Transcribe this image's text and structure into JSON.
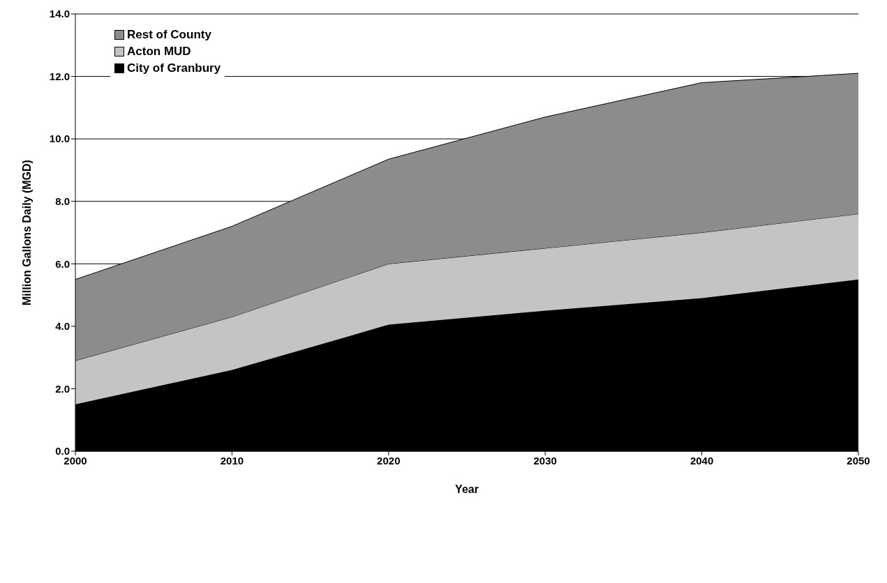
{
  "chart_data": {
    "type": "area",
    "stacked": true,
    "xlabel": "Year",
    "ylabel": "Million Gallons Daily (MGD)",
    "x": [
      2000,
      2010,
      2020,
      2030,
      2040,
      2050
    ],
    "series": [
      {
        "name": "City of Granbury",
        "color": "#000000",
        "values": [
          1.5,
          2.6,
          4.05,
          4.5,
          4.9,
          5.5
        ]
      },
      {
        "name": "Acton MUD",
        "color": "#c4c4c4",
        "values": [
          1.4,
          1.7,
          1.95,
          2.0,
          2.1,
          2.1
        ]
      },
      {
        "name": "Rest of County",
        "color": "#8c8c8c",
        "values": [
          2.6,
          2.9,
          3.35,
          4.2,
          4.8,
          4.5
        ]
      }
    ],
    "xlim": [
      2000,
      2050
    ],
    "xticks": [
      2000,
      2010,
      2020,
      2030,
      2040,
      2050
    ],
    "ylim": [
      0,
      14
    ],
    "yticks": [
      {
        "value": 0,
        "label": "0.0"
      },
      {
        "value": 2,
        "label": "2.0"
      },
      {
        "value": 4,
        "label": "4.0"
      },
      {
        "value": 6,
        "label": "6.0"
      },
      {
        "value": 8,
        "label": "8.0"
      },
      {
        "value": 10,
        "label": "10.0"
      },
      {
        "value": 12,
        "label": "12.0"
      },
      {
        "value": 14,
        "label": "14.0"
      }
    ],
    "grid": "y",
    "legend": "top left"
  }
}
